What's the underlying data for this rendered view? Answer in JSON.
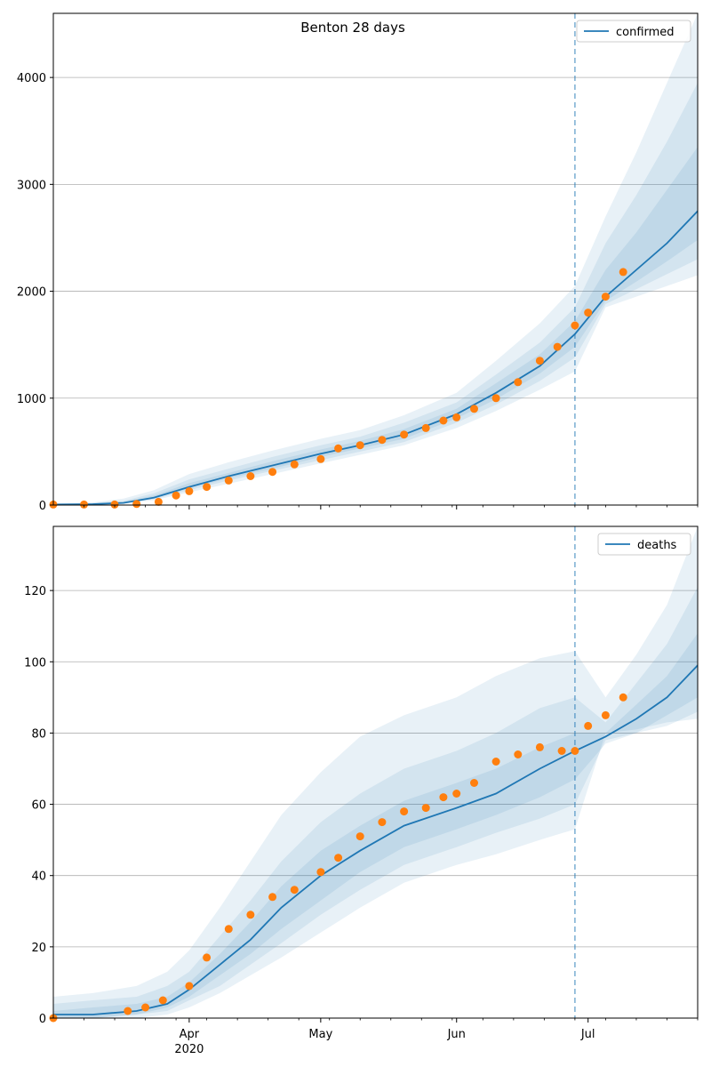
{
  "figure": {
    "title": "Benton 28 days"
  },
  "colors": {
    "model_line": "#1f77b4",
    "observed_points": "#ff7f0e",
    "band": "#1f77b4",
    "vline": "#1f77b4",
    "grid": "#b0b0b0"
  },
  "x_axis": {
    "start": "2020-03-01",
    "end": "2020-07-26",
    "major_ticks": [
      {
        "date": "2020-04-01",
        "label": "Apr",
        "sublabel": "2020"
      },
      {
        "date": "2020-05-01",
        "label": "May",
        "sublabel": ""
      },
      {
        "date": "2020-06-01",
        "label": "Jun",
        "sublabel": ""
      },
      {
        "date": "2020-07-01",
        "label": "Jul",
        "sublabel": ""
      }
    ],
    "minor_ticks": [
      "2020-03-08",
      "2020-03-15",
      "2020-03-22",
      "2020-03-29",
      "2020-04-05",
      "2020-04-12",
      "2020-04-19",
      "2020-04-26",
      "2020-05-03",
      "2020-05-10",
      "2020-05-17",
      "2020-05-24",
      "2020-05-31",
      "2020-06-07",
      "2020-06-14",
      "2020-06-21",
      "2020-06-28",
      "2020-07-05",
      "2020-07-12",
      "2020-07-19",
      "2020-07-26"
    ],
    "forecast_start": "2020-06-28"
  },
  "chart_data": [
    {
      "type": "line",
      "legend": "confirmed",
      "legend_position": "top-right",
      "grid": "y",
      "ylim": [
        0,
        4600
      ],
      "yticks": [
        0,
        1000,
        2000,
        3000,
        4000
      ],
      "model": {
        "x": [
          "2020-03-01",
          "2020-03-10",
          "2020-03-17",
          "2020-03-24",
          "2020-04-01",
          "2020-04-10",
          "2020-04-20",
          "2020-05-01",
          "2020-05-10",
          "2020-05-20",
          "2020-06-01",
          "2020-06-10",
          "2020-06-20",
          "2020-06-28",
          "2020-07-05",
          "2020-07-12",
          "2020-07-19",
          "2020-07-26"
        ],
        "y": [
          5,
          8,
          20,
          70,
          170,
          270,
          370,
          480,
          560,
          660,
          850,
          1050,
          1300,
          1600,
          1950,
          2200,
          2450,
          2750
        ]
      },
      "bands": [
        {
          "lower": [
            5,
            7,
            15,
            45,
            120,
            200,
            290,
            390,
            470,
            560,
            720,
            880,
            1080,
            1250,
            1850,
            1950,
            2050,
            2150
          ],
          "upper": [
            15,
            25,
            60,
            140,
            290,
            400,
            510,
            620,
            700,
            840,
            1050,
            1350,
            1700,
            2050,
            2700,
            3300,
            3950,
            4600
          ]
        },
        {
          "lower": [
            5,
            8,
            17,
            55,
            140,
            230,
            320,
            420,
            500,
            590,
            770,
            940,
            1160,
            1380,
            1880,
            2020,
            2160,
            2300
          ],
          "upper": [
            12,
            18,
            40,
            110,
            240,
            340,
            450,
            560,
            640,
            770,
            960,
            1220,
            1520,
            1850,
            2450,
            2900,
            3400,
            3950
          ]
        },
        {
          "lower": [
            5,
            8,
            18,
            62,
            155,
            250,
            340,
            450,
            530,
            620,
            810,
            990,
            1230,
            1480,
            1910,
            2090,
            2280,
            2480
          ],
          "upper": [
            9,
            13,
            30,
            90,
            205,
            300,
            410,
            520,
            600,
            710,
            900,
            1140,
            1410,
            1720,
            2200,
            2550,
            2950,
            3350
          ]
        }
      ],
      "observed": {
        "x": [
          "2020-03-01",
          "2020-03-08",
          "2020-03-15",
          "2020-03-20",
          "2020-03-25",
          "2020-03-29",
          "2020-04-01",
          "2020-04-05",
          "2020-04-10",
          "2020-04-15",
          "2020-04-20",
          "2020-04-25",
          "2020-05-01",
          "2020-05-05",
          "2020-05-10",
          "2020-05-15",
          "2020-05-20",
          "2020-05-25",
          "2020-05-29",
          "2020-06-01",
          "2020-06-05",
          "2020-06-10",
          "2020-06-15",
          "2020-06-20",
          "2020-06-24",
          "2020-06-28",
          "2020-07-01",
          "2020-07-05",
          "2020-07-09"
        ],
        "y": [
          5,
          5,
          5,
          10,
          30,
          90,
          130,
          170,
          230,
          270,
          310,
          380,
          430,
          530,
          560,
          610,
          660,
          720,
          790,
          820,
          900,
          1000,
          1150,
          1350,
          1480,
          1680,
          1800,
          1950,
          2180
        ]
      }
    },
    {
      "type": "line",
      "legend": "deaths",
      "legend_position": "top-right",
      "grid": "y",
      "ylim": [
        0,
        138
      ],
      "yticks": [
        0,
        20,
        40,
        60,
        80,
        100,
        120
      ],
      "model": {
        "x": [
          "2020-03-01",
          "2020-03-10",
          "2020-03-20",
          "2020-03-27",
          "2020-04-01",
          "2020-04-08",
          "2020-04-15",
          "2020-04-22",
          "2020-05-01",
          "2020-05-10",
          "2020-05-20",
          "2020-06-01",
          "2020-06-10",
          "2020-06-20",
          "2020-06-28",
          "2020-07-05",
          "2020-07-12",
          "2020-07-19",
          "2020-07-26"
        ],
        "y": [
          1,
          1,
          2,
          4,
          8,
          15,
          22,
          31,
          40,
          47,
          54,
          59,
          63,
          70,
          75,
          79,
          84,
          90,
          99
        ]
      },
      "bands": [
        {
          "lower": [
            0,
            0,
            0,
            1,
            3,
            7,
            12,
            17,
            24,
            31,
            38,
            43,
            46,
            50,
            53,
            80,
            81,
            83,
            84
          ],
          "upper": [
            6,
            7,
            9,
            13,
            19,
            31,
            44,
            57,
            69,
            79,
            85,
            90,
            96,
            101,
            103,
            90,
            102,
            116,
            138
          ]
        },
        {
          "lower": [
            0,
            0,
            1,
            2,
            5,
            9,
            15,
            21,
            29,
            36,
            43,
            48,
            52,
            56,
            60,
            78,
            80,
            82,
            86
          ],
          "upper": [
            4,
            5,
            6,
            9,
            13,
            23,
            33,
            44,
            55,
            63,
            70,
            75,
            80,
            87,
            90,
            83,
            94,
            105,
            121
          ]
        },
        {
          "lower": [
            0,
            0,
            1,
            3,
            6,
            12,
            18,
            25,
            33,
            41,
            48,
            53,
            57,
            62,
            67,
            77,
            80,
            85,
            90
          ],
          "upper": [
            2,
            3,
            4,
            6,
            10,
            18,
            27,
            37,
            47,
            54,
            61,
            66,
            70,
            76,
            80,
            80,
            88,
            96,
            108
          ]
        }
      ],
      "observed": {
        "x": [
          "2020-03-01",
          "2020-03-18",
          "2020-03-22",
          "2020-03-26",
          "2020-04-01",
          "2020-04-05",
          "2020-04-10",
          "2020-04-15",
          "2020-04-20",
          "2020-04-25",
          "2020-05-01",
          "2020-05-05",
          "2020-05-10",
          "2020-05-15",
          "2020-05-20",
          "2020-05-25",
          "2020-05-29",
          "2020-06-01",
          "2020-06-05",
          "2020-06-10",
          "2020-06-15",
          "2020-06-20",
          "2020-06-25",
          "2020-06-28",
          "2020-07-01",
          "2020-07-05",
          "2020-07-09"
        ],
        "y": [
          0,
          2,
          3,
          5,
          9,
          17,
          25,
          29,
          34,
          36,
          41,
          45,
          51,
          55,
          58,
          59,
          62,
          63,
          66,
          72,
          74,
          76,
          75,
          75,
          82,
          85,
          90
        ]
      }
    }
  ]
}
